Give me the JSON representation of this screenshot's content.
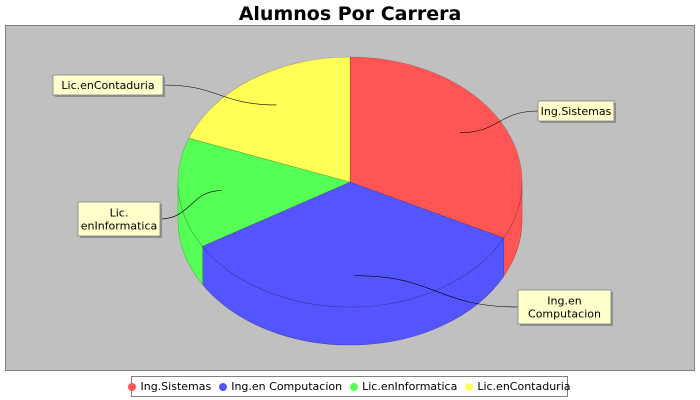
{
  "chart_data": {
    "type": "pie",
    "title": "Alumnos Por Carrera",
    "style": "3d",
    "categories": [
      "Ing.Sistemas",
      "Ing.en Computacion",
      "Lic.enInformatica",
      "Lic.enContaduria"
    ],
    "values": [
      32.4,
      34.0,
      14.3,
      19.3
    ],
    "labels": [
      "Ing.Sistemas",
      "Ing.en\nComputacion",
      "Lic.\nenInformatica",
      "Lic.enContaduria"
    ],
    "colors": [
      "#ff5555",
      "#5555ff",
      "#55ff55",
      "#ffff55"
    ],
    "plot_background": "#c0c0c0",
    "legend": {
      "position": "bottom"
    }
  }
}
